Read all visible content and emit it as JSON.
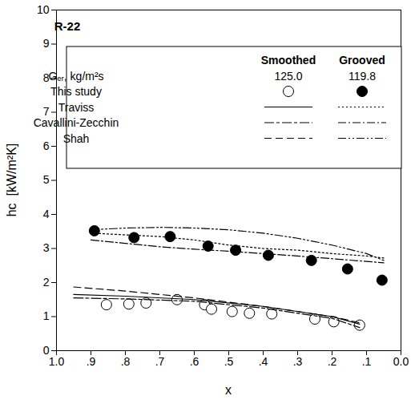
{
  "chart_data": {
    "type": "scatter",
    "title": "R-22",
    "x_label": "x",
    "y_label": "hc  [kW/m²K]",
    "xlim": [
      1.0,
      0.0
    ],
    "ylim": [
      0,
      10
    ],
    "xticks": [
      {
        "value": 1.0,
        "label": "1.0"
      },
      {
        "value": 0.9,
        "label": ".9"
      },
      {
        "value": 0.8,
        "label": ".8"
      },
      {
        "value": 0.7,
        "label": ".7"
      },
      {
        "value": 0.6,
        "label": ".6"
      },
      {
        "value": 0.5,
        "label": ".5"
      },
      {
        "value": 0.4,
        "label": ".4"
      },
      {
        "value": 0.3,
        "label": ".3"
      },
      {
        "value": 0.2,
        "label": ".2"
      },
      {
        "value": 0.1,
        "label": ".1"
      },
      {
        "value": 0.0,
        "label": "0.0"
      }
    ],
    "yticks": [
      0,
      1,
      2,
      3,
      4,
      5,
      6,
      7,
      8,
      9,
      10
    ],
    "grid": false,
    "legend": "top",
    "legend_columns": [
      "Smoothed",
      "Grooved"
    ],
    "mass_flux": {
      "label": "Gₑᵣ, kg/m²s",
      "values": [
        {
          "value": 125.0,
          "label": "125.0"
        },
        {
          "value": 119.8,
          "label": "119.8"
        }
      ]
    },
    "series": [
      {
        "name": "This study",
        "group": "Smoothed",
        "type": "scatter",
        "marker": "circle-open",
        "color": "#000000",
        "x": [
          0.855,
          0.79,
          0.74,
          0.65,
          0.57,
          0.55,
          0.49,
          0.44,
          0.375,
          0.25,
          0.195,
          0.12
        ],
        "values": [
          1.35,
          1.37,
          1.4,
          1.5,
          1.35,
          1.22,
          1.15,
          1.1,
          1.08,
          0.93,
          0.85,
          0.75
        ]
      },
      {
        "name": "This study",
        "group": "Grooved",
        "type": "scatter",
        "marker": "circle-filled",
        "color": "#000000",
        "x": [
          0.89,
          0.775,
          0.67,
          0.56,
          0.48,
          0.385,
          0.26,
          0.155,
          0.055
        ],
        "values": [
          3.52,
          3.32,
          3.35,
          3.07,
          2.95,
          2.8,
          2.65,
          2.4,
          2.07
        ]
      },
      {
        "name": "Traviss",
        "group": "Smoothed",
        "type": "line",
        "line_style": "solid",
        "color": "#000000",
        "x": [
          0.95,
          0.8,
          0.6,
          0.4,
          0.2,
          0.12
        ],
        "values": [
          1.65,
          1.6,
          1.5,
          1.3,
          1.0,
          0.78
        ]
      },
      {
        "name": "Traviss",
        "group": "Grooved",
        "type": "line",
        "line_style": "dotted",
        "color": "#000000",
        "x": [
          0.9,
          0.8,
          0.7,
          0.6,
          0.5,
          0.4,
          0.3,
          0.2,
          0.1,
          0.05
        ],
        "values": [
          3.45,
          3.4,
          3.35,
          3.25,
          3.1,
          3.0,
          2.95,
          2.85,
          2.78,
          2.72
        ]
      },
      {
        "name": "Cavallini-Zecchin",
        "group": "Smoothed",
        "type": "line",
        "line_style": "longdash-dash",
        "color": "#000000",
        "x": [
          0.95,
          0.8,
          0.6,
          0.4,
          0.2,
          0.12
        ],
        "values": [
          1.55,
          1.52,
          1.45,
          1.25,
          0.95,
          0.68
        ]
      },
      {
        "name": "Cavallini-Zecchin",
        "group": "Grooved",
        "type": "line",
        "line_style": "dash-dot",
        "color": "#000000",
        "x": [
          0.9,
          0.8,
          0.7,
          0.6,
          0.5,
          0.4,
          0.3,
          0.2,
          0.1,
          0.05
        ],
        "values": [
          3.25,
          3.15,
          3.05,
          2.98,
          2.92,
          2.85,
          2.78,
          2.7,
          2.62,
          2.58
        ]
      },
      {
        "name": "Shah",
        "group": "Smoothed",
        "type": "line",
        "line_style": "dashed",
        "color": "#000000",
        "x": [
          0.95,
          0.8,
          0.6,
          0.4,
          0.2,
          0.12
        ],
        "values": [
          1.87,
          1.75,
          1.55,
          1.3,
          1.0,
          0.82
        ]
      },
      {
        "name": "Shah",
        "group": "Grooved",
        "type": "line",
        "line_style": "dash-dot-dot",
        "color": "#000000",
        "x": [
          0.9,
          0.8,
          0.7,
          0.6,
          0.5,
          0.4,
          0.3,
          0.2,
          0.1,
          0.05
        ],
        "values": [
          3.55,
          3.6,
          3.62,
          3.6,
          3.55,
          3.45,
          3.3,
          3.1,
          2.85,
          2.65
        ]
      }
    ]
  }
}
